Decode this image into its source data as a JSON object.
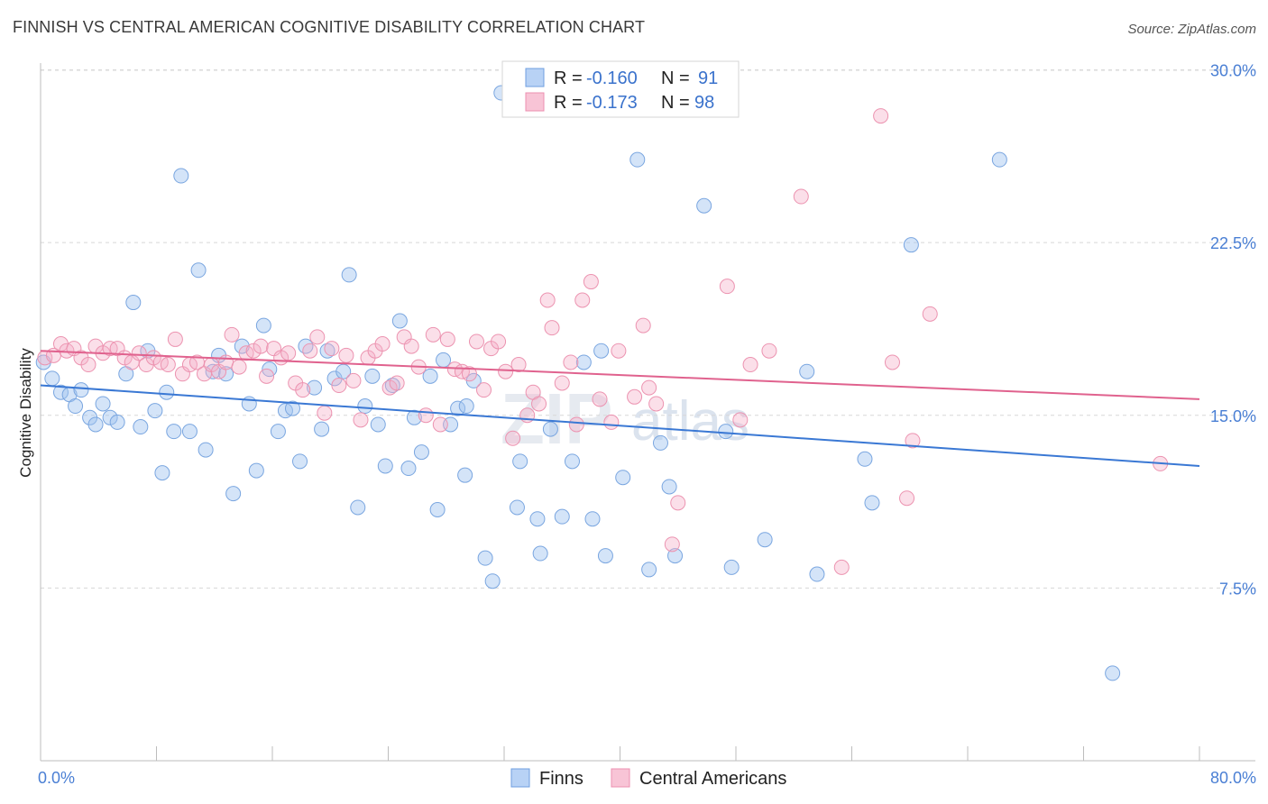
{
  "title": "FINNISH VS CENTRAL AMERICAN COGNITIVE DISABILITY CORRELATION CHART",
  "source": "Source: ZipAtlas.com",
  "watermark": {
    "a": "ZIP",
    "b": "atlas"
  },
  "chart_data": {
    "type": "scatter",
    "ylabel": "Cognitive Disability",
    "xlim": [
      0,
      80
    ],
    "ylim": [
      0,
      32
    ],
    "x_ticks": [
      "0.0%",
      "80.0%"
    ],
    "y_ticks": [
      {
        "value": 30,
        "label": "30.0%"
      },
      {
        "value": 22.5,
        "label": "22.5%"
      },
      {
        "value": 15,
        "label": "15.0%"
      },
      {
        "value": 7.5,
        "label": "7.5%"
      }
    ],
    "grid": true,
    "legend_position": "top-center",
    "bottom_legend": [
      "Finns",
      "Central Americans"
    ],
    "series": [
      {
        "name": "Finns",
        "color": "#3a78d4",
        "r_label": "R =",
        "r_value": "-0.160",
        "n_label": "N =",
        "n_value": "91",
        "trend": {
          "x0": 0,
          "y0": 16.3,
          "x1": 80,
          "y1": 12.8
        },
        "points": [
          [
            0.2,
            17.3
          ],
          [
            0.8,
            16.6
          ],
          [
            1.4,
            16.0
          ],
          [
            2.0,
            15.9
          ],
          [
            2.4,
            15.4
          ],
          [
            2.8,
            16.1
          ],
          [
            3.4,
            14.9
          ],
          [
            3.8,
            14.6
          ],
          [
            4.3,
            15.5
          ],
          [
            4.8,
            14.9
          ],
          [
            5.3,
            14.7
          ],
          [
            5.9,
            16.8
          ],
          [
            6.4,
            19.9
          ],
          [
            6.9,
            14.5
          ],
          [
            7.4,
            17.8
          ],
          [
            7.9,
            15.2
          ],
          [
            8.4,
            12.5
          ],
          [
            8.7,
            16.0
          ],
          [
            9.2,
            14.3
          ],
          [
            9.7,
            25.4
          ],
          [
            10.3,
            14.3
          ],
          [
            10.9,
            21.3
          ],
          [
            11.4,
            13.5
          ],
          [
            11.9,
            16.9
          ],
          [
            12.3,
            17.6
          ],
          [
            12.8,
            16.8
          ],
          [
            13.3,
            11.6
          ],
          [
            13.9,
            18.0
          ],
          [
            14.4,
            15.5
          ],
          [
            14.9,
            12.6
          ],
          [
            15.4,
            18.9
          ],
          [
            15.8,
            17.0
          ],
          [
            16.4,
            14.3
          ],
          [
            16.9,
            15.2
          ],
          [
            17.4,
            15.3
          ],
          [
            17.9,
            13.0
          ],
          [
            18.3,
            18.0
          ],
          [
            18.9,
            16.2
          ],
          [
            19.4,
            14.4
          ],
          [
            19.8,
            17.8
          ],
          [
            20.3,
            16.6
          ],
          [
            20.9,
            16.9
          ],
          [
            21.3,
            21.1
          ],
          [
            21.9,
            11.0
          ],
          [
            22.4,
            15.4
          ],
          [
            22.9,
            16.7
          ],
          [
            23.3,
            14.6
          ],
          [
            23.8,
            12.8
          ],
          [
            24.3,
            16.3
          ],
          [
            24.8,
            19.1
          ],
          [
            25.4,
            12.7
          ],
          [
            25.8,
            14.9
          ],
          [
            26.3,
            13.4
          ],
          [
            26.9,
            16.7
          ],
          [
            27.4,
            10.9
          ],
          [
            27.8,
            17.4
          ],
          [
            28.3,
            14.6
          ],
          [
            28.8,
            15.3
          ],
          [
            29.3,
            12.4
          ],
          [
            29.9,
            16.5
          ],
          [
            30.7,
            8.8
          ],
          [
            31.2,
            7.8
          ],
          [
            31.8,
            29.0
          ],
          [
            32.9,
            11.0
          ],
          [
            33.1,
            13.0
          ],
          [
            34.3,
            10.5
          ],
          [
            34.5,
            9.0
          ],
          [
            35.2,
            14.4
          ],
          [
            36.0,
            10.6
          ],
          [
            36.7,
            13.0
          ],
          [
            37.5,
            17.3
          ],
          [
            38.1,
            10.5
          ],
          [
            38.7,
            17.8
          ],
          [
            39.0,
            8.9
          ],
          [
            40.2,
            12.3
          ],
          [
            41.2,
            26.1
          ],
          [
            42.0,
            8.3
          ],
          [
            42.8,
            13.8
          ],
          [
            43.4,
            11.9
          ],
          [
            43.8,
            8.9
          ],
          [
            45.0,
            29.9
          ],
          [
            45.8,
            24.1
          ],
          [
            47.3,
            14.3
          ],
          [
            47.7,
            8.4
          ],
          [
            50.0,
            9.6
          ],
          [
            53.6,
            8.1
          ],
          [
            52.9,
            16.9
          ],
          [
            56.9,
            13.1
          ],
          [
            57.4,
            11.2
          ],
          [
            60.1,
            22.4
          ],
          [
            66.2,
            26.1
          ],
          [
            74.0,
            3.8
          ],
          [
            29.4,
            15.4
          ]
        ]
      },
      {
        "name": "Central Americans",
        "color": "#e0628e",
        "r_label": "R =",
        "r_value": "-0.173",
        "n_label": "N =",
        "n_value": "98",
        "trend": {
          "x0": 0,
          "y0": 17.8,
          "x1": 80,
          "y1": 15.7
        },
        "points": [
          [
            0.3,
            17.5
          ],
          [
            0.9,
            17.6
          ],
          [
            1.4,
            18.1
          ],
          [
            1.8,
            17.8
          ],
          [
            2.3,
            17.9
          ],
          [
            2.8,
            17.5
          ],
          [
            3.3,
            17.2
          ],
          [
            3.8,
            18.0
          ],
          [
            4.3,
            17.7
          ],
          [
            4.8,
            17.9
          ],
          [
            5.3,
            17.9
          ],
          [
            5.8,
            17.5
          ],
          [
            6.3,
            17.3
          ],
          [
            6.8,
            17.7
          ],
          [
            7.3,
            17.2
          ],
          [
            7.8,
            17.5
          ],
          [
            8.3,
            17.3
          ],
          [
            8.8,
            17.2
          ],
          [
            9.3,
            18.3
          ],
          [
            9.8,
            16.8
          ],
          [
            10.3,
            17.2
          ],
          [
            10.8,
            17.3
          ],
          [
            11.3,
            16.8
          ],
          [
            11.8,
            17.2
          ],
          [
            12.3,
            16.9
          ],
          [
            12.8,
            17.3
          ],
          [
            13.2,
            18.5
          ],
          [
            13.7,
            17.1
          ],
          [
            14.2,
            17.7
          ],
          [
            14.7,
            17.8
          ],
          [
            15.2,
            18.0
          ],
          [
            15.6,
            16.7
          ],
          [
            16.1,
            17.9
          ],
          [
            16.6,
            17.5
          ],
          [
            17.1,
            17.7
          ],
          [
            17.6,
            16.4
          ],
          [
            18.1,
            16.1
          ],
          [
            18.6,
            17.8
          ],
          [
            19.1,
            18.4
          ],
          [
            19.6,
            15.1
          ],
          [
            20.1,
            17.9
          ],
          [
            20.6,
            16.3
          ],
          [
            21.1,
            17.6
          ],
          [
            21.6,
            16.5
          ],
          [
            22.1,
            14.8
          ],
          [
            22.6,
            17.5
          ],
          [
            23.1,
            17.8
          ],
          [
            23.6,
            18.1
          ],
          [
            24.1,
            16.2
          ],
          [
            24.6,
            16.4
          ],
          [
            25.1,
            18.4
          ],
          [
            25.6,
            18.0
          ],
          [
            26.1,
            17.1
          ],
          [
            26.6,
            15.0
          ],
          [
            27.1,
            18.5
          ],
          [
            27.6,
            14.6
          ],
          [
            28.1,
            18.3
          ],
          [
            28.6,
            17.0
          ],
          [
            29.1,
            16.9
          ],
          [
            29.6,
            16.8
          ],
          [
            30.1,
            18.2
          ],
          [
            30.6,
            16.1
          ],
          [
            31.1,
            17.9
          ],
          [
            31.6,
            18.2
          ],
          [
            32.1,
            16.9
          ],
          [
            32.6,
            14.0
          ],
          [
            33.0,
            17.2
          ],
          [
            33.6,
            15.0
          ],
          [
            34.0,
            16.0
          ],
          [
            34.4,
            15.5
          ],
          [
            35.0,
            20.0
          ],
          [
            35.3,
            18.8
          ],
          [
            36.0,
            16.4
          ],
          [
            36.6,
            17.3
          ],
          [
            37.0,
            14.6
          ],
          [
            37.4,
            20.0
          ],
          [
            38.0,
            20.8
          ],
          [
            38.6,
            15.7
          ],
          [
            39.4,
            14.7
          ],
          [
            39.9,
            17.8
          ],
          [
            41.0,
            15.8
          ],
          [
            41.6,
            18.9
          ],
          [
            42.0,
            16.2
          ],
          [
            42.5,
            15.5
          ],
          [
            43.6,
            9.4
          ],
          [
            44.0,
            11.2
          ],
          [
            47.4,
            20.6
          ],
          [
            48.3,
            14.8
          ],
          [
            49.0,
            17.2
          ],
          [
            50.3,
            17.8
          ],
          [
            52.5,
            24.5
          ],
          [
            58.8,
            17.3
          ],
          [
            59.8,
            11.4
          ],
          [
            60.2,
            13.9
          ],
          [
            61.4,
            19.4
          ],
          [
            55.3,
            8.4
          ],
          [
            58.0,
            28.0
          ],
          [
            77.3,
            12.9
          ]
        ]
      }
    ]
  }
}
